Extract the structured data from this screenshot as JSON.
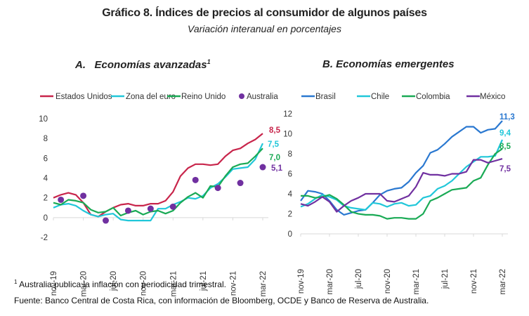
{
  "figure": {
    "title": "Gráfico 8. Índices de precios al consumidor de algunos países",
    "subtitle": "Variación interanual en porcentajes",
    "footnote_marker": "1",
    "footnote": "Australia publica la inflación con periodicidad trimestral.",
    "source": "Fuente: Banco Central de Costa Rica, con información de Bloomberg, OCDE y Banco de Reserva de Australia."
  },
  "chart_data": [
    {
      "id": "A",
      "type": "line",
      "title_prefix": "A.",
      "title": "Economías avanzadas",
      "title_superscript": "1",
      "xlabel": "",
      "ylabel": "",
      "ylim": [
        -2,
        10
      ],
      "yticks": [
        -2,
        0,
        2,
        4,
        6,
        8,
        10
      ],
      "ytick_labels": [
        "-2",
        "0",
        "2",
        "4",
        "6",
        "8",
        "10"
      ],
      "xtick_labels": [
        "nov-19",
        "mar-20",
        "jul-20",
        "nov-20",
        "mar-21",
        "jul-21",
        "nov-21",
        "mar-22"
      ],
      "x": [
        "nov-19",
        "dic-19",
        "ene-20",
        "feb-20",
        "mar-20",
        "abr-20",
        "may-20",
        "jun-20",
        "jul-20",
        "ago-20",
        "sep-20",
        "oct-20",
        "nov-20",
        "dic-20",
        "ene-21",
        "feb-21",
        "mar-21",
        "abr-21",
        "may-21",
        "jun-21",
        "jul-21",
        "ago-21",
        "sep-21",
        "oct-21",
        "nov-21",
        "dic-21",
        "ene-22",
        "feb-22",
        "mar-22"
      ],
      "legend_position": "top",
      "grid": false,
      "series": [
        {
          "name": "Estados Unidos",
          "kind": "line",
          "color": "#c8254b",
          "end_label": "8,5",
          "values": [
            2.0,
            2.3,
            2.5,
            2.3,
            1.5,
            0.3,
            0.1,
            0.6,
            1.0,
            1.3,
            1.4,
            1.2,
            1.2,
            1.4,
            1.4,
            1.7,
            2.6,
            4.2,
            5.0,
            5.4,
            5.4,
            5.3,
            5.4,
            6.2,
            6.8,
            7.0,
            7.5,
            7.9,
            8.5
          ]
        },
        {
          "name": "Zona del euro",
          "kind": "line",
          "color": "#21c7d9",
          "end_label": "7,5",
          "values": [
            1.0,
            1.3,
            1.4,
            1.2,
            0.7,
            0.3,
            0.1,
            0.3,
            0.4,
            -0.2,
            -0.3,
            -0.3,
            -0.3,
            -0.3,
            0.9,
            0.9,
            1.3,
            1.6,
            2.0,
            1.9,
            2.2,
            3.0,
            3.4,
            4.1,
            4.9,
            5.0,
            5.1,
            5.9,
            7.5
          ]
        },
        {
          "name": "Reino Unido",
          "kind": "line",
          "color": "#1aaa55",
          "end_label": "7,0",
          "values": [
            1.5,
            1.3,
            1.8,
            1.7,
            1.5,
            0.8,
            0.5,
            0.6,
            1.0,
            0.2,
            0.5,
            0.7,
            0.3,
            0.6,
            0.7,
            0.4,
            0.7,
            1.5,
            2.1,
            2.5,
            2.0,
            3.2,
            3.1,
            4.2,
            5.1,
            5.4,
            5.5,
            6.2,
            7.0
          ]
        },
        {
          "name": "Australia",
          "kind": "scatter",
          "color": "#7030a0",
          "end_label": "5,1",
          "points": [
            {
              "x": "dic-19",
              "y": 1.8
            },
            {
              "x": "mar-20",
              "y": 2.2
            },
            {
              "x": "jun-20",
              "y": -0.3
            },
            {
              "x": "sep-20",
              "y": 0.7
            },
            {
              "x": "dic-20",
              "y": 0.9
            },
            {
              "x": "mar-21",
              "y": 1.1
            },
            {
              "x": "jun-21",
              "y": 3.8
            },
            {
              "x": "sep-21",
              "y": 3.0
            },
            {
              "x": "dic-21",
              "y": 3.5
            },
            {
              "x": "mar-22",
              "y": 5.1
            }
          ]
        }
      ]
    },
    {
      "id": "B",
      "type": "line",
      "title_prefix": "B.",
      "title": "Economías emergentes",
      "xlabel": "",
      "ylabel": "",
      "ylim": [
        0,
        12
      ],
      "yticks": [
        0,
        2,
        4,
        6,
        8,
        10,
        12
      ],
      "ytick_labels": [
        "0",
        "2",
        "4",
        "6",
        "8",
        "10",
        "12"
      ],
      "xtick_labels": [
        "nov-19",
        "mar-20",
        "jul-20",
        "nov-20",
        "mar-21",
        "jul-21",
        "nov-21",
        "mar-22"
      ],
      "x": [
        "nov-19",
        "dic-19",
        "ene-20",
        "feb-20",
        "mar-20",
        "abr-20",
        "may-20",
        "jun-20",
        "jul-20",
        "ago-20",
        "sep-20",
        "oct-20",
        "nov-20",
        "dic-20",
        "ene-21",
        "feb-21",
        "mar-21",
        "abr-21",
        "may-21",
        "jun-21",
        "jul-21",
        "ago-21",
        "sep-21",
        "oct-21",
        "nov-21",
        "dic-21",
        "ene-22",
        "feb-22",
        "mar-22"
      ],
      "legend_position": "top",
      "grid": false,
      "series": [
        {
          "name": "Brasil",
          "kind": "line",
          "color": "#2a78d0",
          "end_label": "11,3",
          "values": [
            3.3,
            4.3,
            4.2,
            4.0,
            3.3,
            2.4,
            1.9,
            2.1,
            2.3,
            2.4,
            3.1,
            3.9,
            4.3,
            4.5,
            4.6,
            5.2,
            6.1,
            6.8,
            8.1,
            8.4,
            9.0,
            9.7,
            10.2,
            10.7,
            10.7,
            10.1,
            10.4,
            10.5,
            11.3
          ]
        },
        {
          "name": "Chile",
          "kind": "line",
          "color": "#21c7d9",
          "end_label": "9,4",
          "values": [
            2.7,
            3.0,
            3.5,
            3.9,
            3.7,
            3.4,
            2.8,
            2.6,
            2.5,
            2.4,
            3.1,
            3.0,
            2.7,
            3.0,
            3.1,
            2.8,
            2.9,
            3.6,
            3.8,
            4.5,
            4.8,
            5.3,
            6.0,
            6.7,
            7.2,
            7.7,
            7.7,
            7.8,
            9.4
          ]
        },
        {
          "name": "Colombia",
          "kind": "line",
          "color": "#1aaa55",
          "end_label": "8,5",
          "values": [
            3.8,
            3.8,
            3.6,
            3.7,
            3.9,
            3.5,
            2.9,
            2.2,
            2.0,
            1.9,
            1.9,
            1.8,
            1.5,
            1.6,
            1.6,
            1.5,
            1.5,
            2.0,
            3.3,
            3.6,
            4.0,
            4.4,
            4.5,
            4.6,
            5.3,
            5.6,
            6.9,
            8.0,
            8.5
          ]
        },
        {
          "name": "México",
          "kind": "line",
          "color": "#7030a0",
          "end_label": "7,5",
          "values": [
            3.0,
            2.8,
            3.2,
            3.7,
            3.2,
            2.2,
            2.8,
            3.3,
            3.6,
            4.0,
            4.0,
            4.0,
            3.3,
            3.2,
            3.5,
            3.8,
            4.7,
            6.1,
            5.9,
            5.9,
            5.8,
            6.0,
            6.0,
            6.2,
            7.4,
            7.4,
            7.1,
            7.3,
            7.5
          ]
        }
      ]
    }
  ]
}
